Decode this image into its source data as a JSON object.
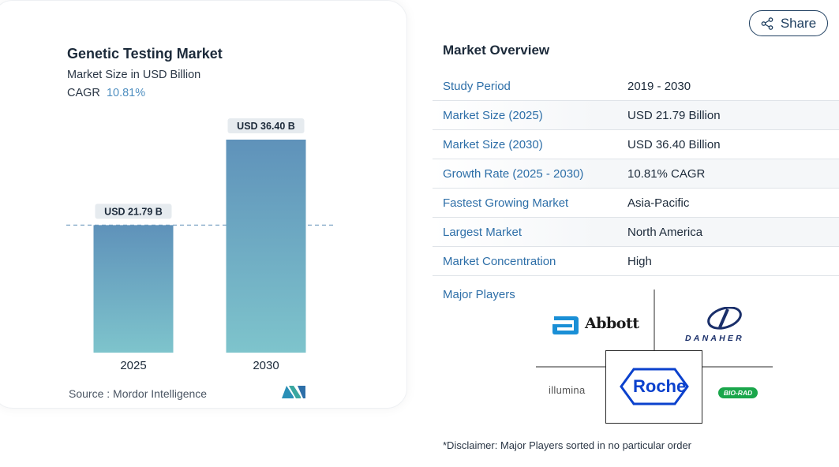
{
  "chart_data": {
    "type": "bar",
    "title": "Genetic Testing Market",
    "subtitle": "Market Size in USD Billion",
    "cagr_label": "CAGR",
    "cagr_value": "10.81%",
    "categories": [
      "2025",
      "2030"
    ],
    "values": [
      21.79,
      36.4
    ],
    "data_labels": [
      "USD 21.79 B",
      "USD 36.40 B"
    ],
    "ylim": [
      0,
      36.4
    ],
    "grid": false,
    "reference_line": 21.79,
    "bar_color_top": "#5f92ba",
    "bar_color_bottom": "#7ec4cc",
    "source": "Source :  Mordor Intelligence"
  },
  "share": {
    "label": "Share",
    "icon": "share-icon"
  },
  "overview": {
    "title": "Market Overview",
    "rows": [
      {
        "key": "Study Period",
        "value": "2019 - 2030"
      },
      {
        "key": "Market Size (2025)",
        "value": "USD 21.79 Billion"
      },
      {
        "key": "Market Size (2030)",
        "value": "USD 36.40 Billion"
      },
      {
        "key": "Growth Rate (2025 - 2030)",
        "value": "10.81% CAGR"
      },
      {
        "key": "Fastest Growing Market",
        "value": "Asia-Pacific"
      },
      {
        "key": "Largest Market",
        "value": "North America"
      },
      {
        "key": "Market Concentration",
        "value": "High"
      }
    ]
  },
  "players": {
    "label": "Major Players",
    "names": [
      "Abbott",
      "DANAHER",
      "illumina",
      "Roche",
      "BIO-RAD"
    ]
  },
  "disclaimer": "*Disclaimer: Major Players sorted in no particular order",
  "colors": {
    "link": "#2e6fa8",
    "accent": "#4f8fc0",
    "roche_blue": "#0b41cd",
    "biorad_green": "#1aa64b",
    "abbott_blue": "#1a8fd6"
  }
}
